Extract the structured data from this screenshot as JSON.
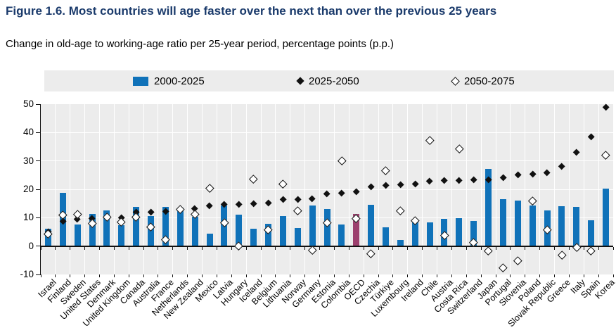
{
  "figure": {
    "title": "Figure 1.6. Most countries will age faster over the next than over the previous 25 years",
    "subtitle": "Change in old-age to working-age ratio per 25-year period, percentage points (p.p.)"
  },
  "colors": {
    "title": "#1a3a6b",
    "bar": "#1072b9",
    "bar_highlight": "#9c3f6d",
    "plot_bg": "#ececec",
    "legend_bg": "#ececec",
    "gridline": "#ffffff",
    "axis": "#111111"
  },
  "legend": [
    {
      "label": "2000-2025",
      "marker": "blue-bar"
    },
    {
      "label": "2025-2050",
      "marker": "filled-diamond"
    },
    {
      "label": "2050-2075",
      "marker": "open-diamond"
    }
  ],
  "chart_data": {
    "type": "bar",
    "title": "Figure 1.6. Most countries will age faster over the next than over the previous 25 years",
    "subtitle": "Change in old-age to working-age ratio per 25-year period, percentage points (p.p.)",
    "xlabel": "",
    "ylabel": "percentage points (p.p.)",
    "ylim": [
      -10,
      50
    ],
    "yticks": [
      -10,
      0,
      10,
      20,
      30,
      40,
      50
    ],
    "grid": true,
    "legend_position": "top",
    "highlight_category": "OECD",
    "categories": [
      "Israel",
      "Finland",
      "Sweden",
      "United States",
      "Denmark",
      "United Kingdom",
      "Canada",
      "Australia",
      "France",
      "Netherlands",
      "New Zealand",
      "Mexico",
      "Latvia",
      "Hungary",
      "Iceland",
      "Belgium",
      "Lithuania",
      "Norway",
      "Germany",
      "Estonia",
      "Colombia",
      "OECD",
      "Czechia",
      "Türkiye",
      "Luxembourg",
      "Ireland",
      "Chile",
      "Austria",
      "Costa Rica",
      "Switzerland",
      "Japan",
      "Portugal",
      "Slovenia",
      "Poland",
      "Slovak Republic",
      "Greece",
      "Italy",
      "Spain",
      "Korea"
    ],
    "series": [
      {
        "name": "2000-2025",
        "type": "bar",
        "values": [
          6.0,
          18.8,
          7.5,
          11.3,
          12.6,
          7.3,
          13.7,
          10.5,
          13.7,
          13.6,
          10.4,
          4.5,
          14.3,
          11.1,
          6.2,
          7.9,
          10.6,
          6.3,
          14.3,
          13.0,
          7.6,
          11.4,
          14.5,
          6.6,
          2.2,
          8.9,
          8.4,
          9.5,
          9.8,
          8.9,
          27.1,
          16.6,
          16.1,
          14.3,
          12.6,
          14.1,
          13.7,
          9.2,
          20.2
        ]
      },
      {
        "name": "2025-2050",
        "type": "scatter-filled-diamond",
        "values": [
          5.0,
          8.7,
          9.4,
          9.6,
          9.8,
          10.0,
          11.8,
          11.9,
          12.2,
          12.8,
          13.1,
          14.2,
          14.5,
          14.6,
          14.8,
          15.1,
          16.3,
          16.4,
          16.7,
          18.4,
          18.5,
          19.0,
          20.7,
          21.4,
          21.6,
          21.7,
          22.8,
          23.0,
          23.0,
          23.3,
          23.4,
          24.0,
          25.0,
          25.3,
          25.8,
          28.0,
          32.9,
          38.3,
          48.9
        ]
      },
      {
        "name": "2050-2075",
        "type": "scatter-open-diamond",
        "values": [
          4.3,
          11.1,
          11.2,
          8.1,
          10.3,
          8.4,
          10.2,
          6.7,
          2.3,
          13.1,
          11.3,
          20.5,
          8.3,
          0.0,
          23.7,
          5.9,
          21.9,
          12.6,
          -1.3,
          8.3,
          30.2,
          9.8,
          -2.7,
          26.6,
          12.5,
          9.0,
          37.3,
          3.9,
          34.3,
          1.4,
          -1.7,
          -7.6,
          -5.2,
          16.0,
          5.7,
          -3.2,
          -0.3,
          -1.7,
          32.0
        ]
      }
    ]
  }
}
